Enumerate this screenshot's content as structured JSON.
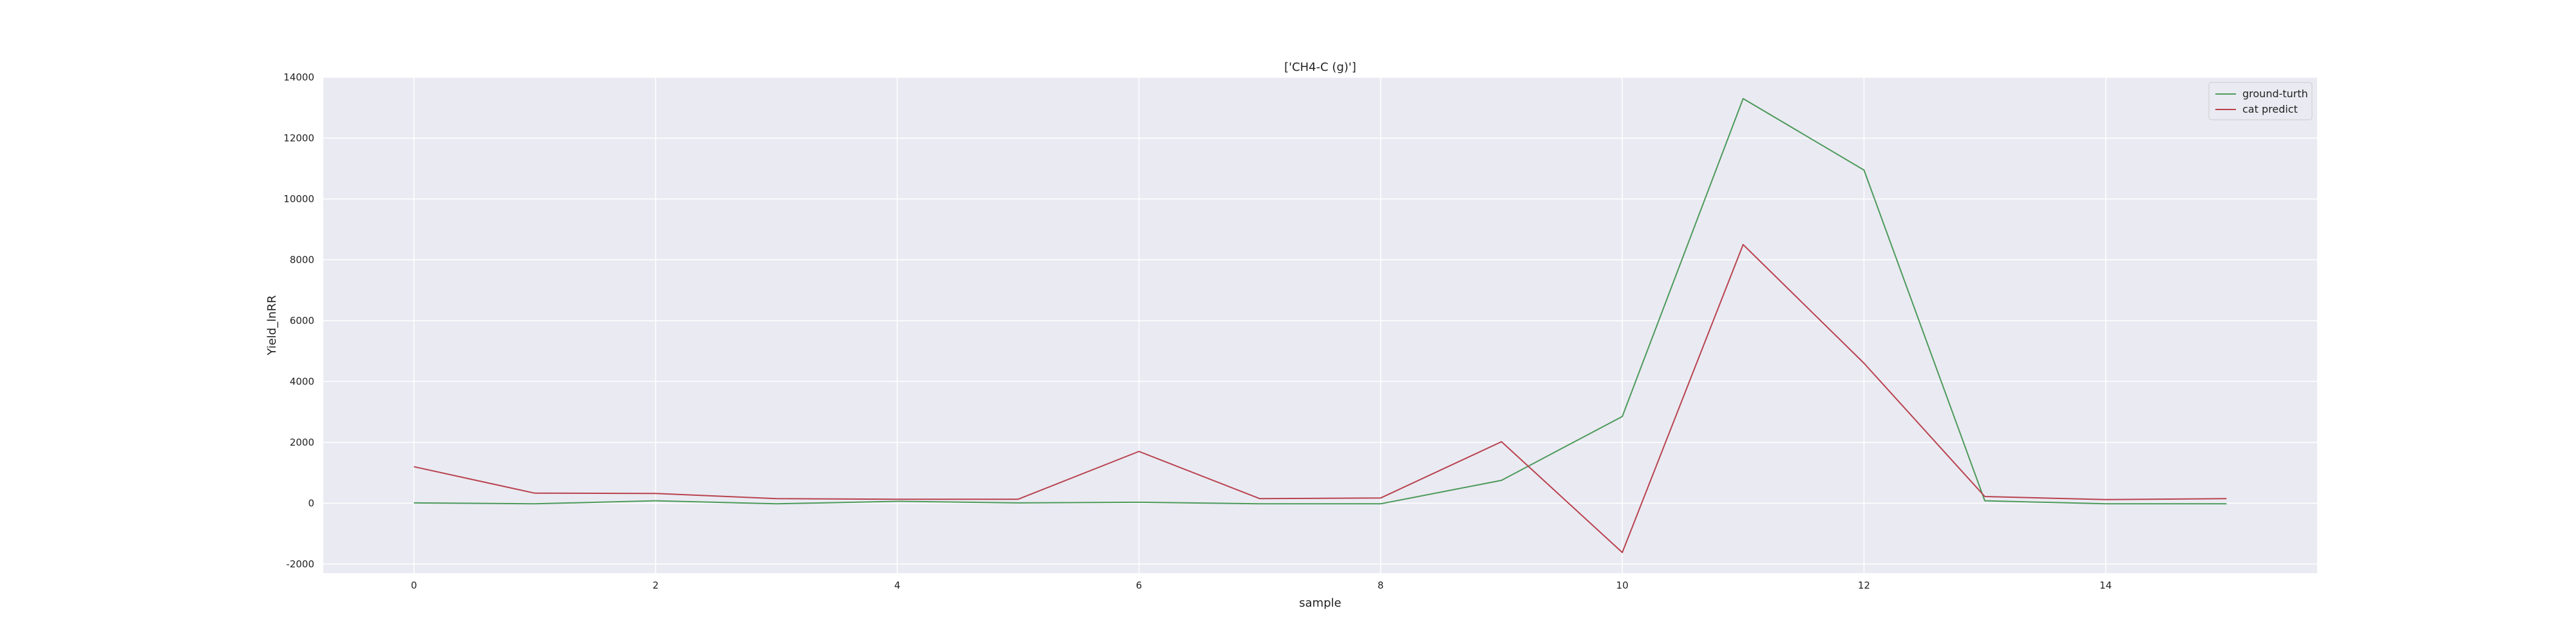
{
  "chart_data": {
    "type": "line",
    "title": "['CH4-C (g)']",
    "xlabel": "sample",
    "ylabel": "Yield_lnRR",
    "x": [
      0,
      1,
      2,
      3,
      4,
      5,
      6,
      7,
      8,
      9,
      10,
      11,
      12,
      13,
      14,
      15
    ],
    "xlim": [
      -0.75,
      15.75
    ],
    "ylim": [
      -2300,
      14000
    ],
    "x_ticks": [
      0,
      2,
      4,
      6,
      8,
      10,
      12,
      14
    ],
    "y_ticks": [
      -2000,
      0,
      2000,
      4000,
      6000,
      8000,
      10000,
      12000,
      14000
    ],
    "grid": true,
    "legend_position": "top-right",
    "series": [
      {
        "name": "ground-turth",
        "color": "#4c9a5a",
        "values": [
          10,
          -20,
          80,
          -20,
          60,
          10,
          30,
          -20,
          -20,
          750,
          2850,
          13300,
          10950,
          80,
          -20,
          -20
        ]
      },
      {
        "name": "cat predict",
        "color": "#b8434f",
        "values": [
          1200,
          330,
          320,
          150,
          130,
          130,
          1700,
          150,
          170,
          2020,
          -1620,
          8500,
          4600,
          220,
          120,
          150
        ]
      }
    ],
    "background_color": "#eaeaf2",
    "grid_color": "#ffffff"
  }
}
